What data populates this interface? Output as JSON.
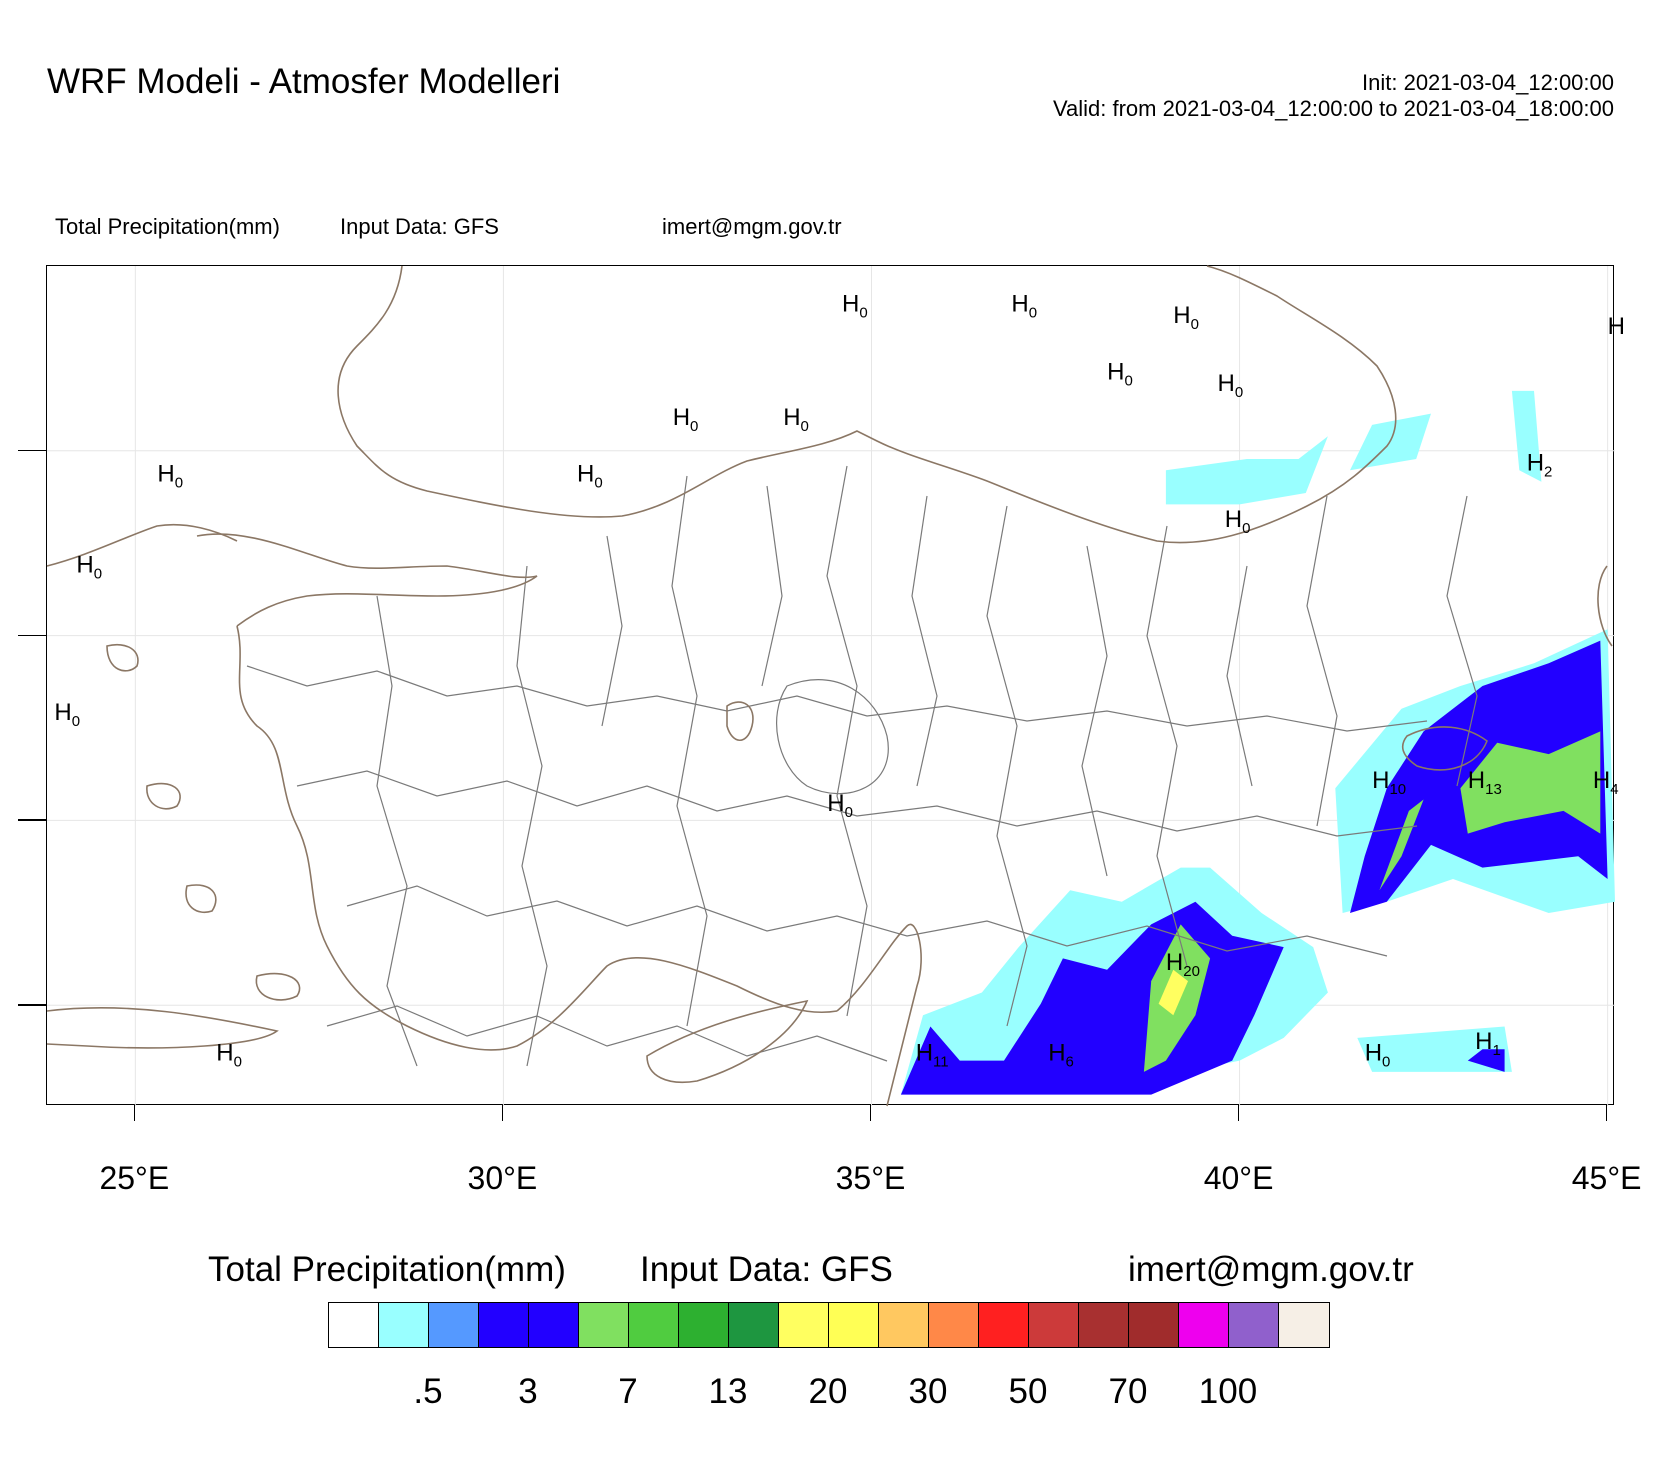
{
  "header": {
    "title": "WRF Modeli - Atmosfer Modelleri",
    "init": "Init: 2021-03-04_12:00:00",
    "valid": "Valid: from 2021-03-04_12:00:00 to 2021-03-04_18:00:00"
  },
  "subheader": {
    "field": "Total Precipitation(mm)",
    "input": "Input Data: GFS",
    "email": "imert@mgm.gov.tr"
  },
  "map": {
    "lon_range": [
      23.8,
      45.1
    ],
    "lat_range": [
      35.2,
      42.6
    ],
    "lon_ticks": [
      "25°E",
      "30°E",
      "35°E",
      "40°E",
      "45°E"
    ],
    "lon_tick_values": [
      25,
      30,
      35,
      40,
      45
    ],
    "colors": {
      "coast": "#8b7765",
      "province": "#7a7a7a",
      "frame": "#000000"
    },
    "h_labels": [
      {
        "num": "0",
        "lon": 34.6,
        "lat": 42.2
      },
      {
        "num": "0",
        "lon": 36.9,
        "lat": 42.2
      },
      {
        "num": "0",
        "lon": 39.1,
        "lat": 42.1
      },
      {
        "num": "0",
        "lon": 38.2,
        "lat": 41.6
      },
      {
        "num": "0",
        "lon": 39.7,
        "lat": 41.5
      },
      {
        "num": "0",
        "lon": 32.3,
        "lat": 41.2
      },
      {
        "num": "0",
        "lon": 33.8,
        "lat": 41.2
      },
      {
        "num": "0",
        "lon": 31.0,
        "lat": 40.7
      },
      {
        "num": "0",
        "lon": 25.3,
        "lat": 40.7
      },
      {
        "num": "0",
        "lon": 24.2,
        "lat": 39.9
      },
      {
        "num": "0",
        "lon": 23.9,
        "lat": 38.6
      },
      {
        "num": "2",
        "lon": 43.9,
        "lat": 40.8
      },
      {
        "num": "0",
        "lon": 39.8,
        "lat": 40.3
      },
      {
        "num": "0",
        "lon": 34.4,
        "lat": 37.8
      },
      {
        "num": "10",
        "lon": 41.8,
        "lat": 38.0
      },
      {
        "num": "13",
        "lon": 43.1,
        "lat": 38.0
      },
      {
        "num": "4",
        "lon": 44.8,
        "lat": 38.0
      },
      {
        "num": "20",
        "lon": 39.0,
        "lat": 36.4
      },
      {
        "num": "0",
        "lon": 41.7,
        "lat": 35.6
      },
      {
        "num": "1",
        "lon": 43.2,
        "lat": 35.7
      },
      {
        "num": "0",
        "lon": 26.1,
        "lat": 35.6
      },
      {
        "num": "11",
        "lon": 35.6,
        "lat": 35.6
      },
      {
        "num": "6",
        "lon": 37.4,
        "lat": 35.6
      },
      {
        "num": "",
        "lon": 45.0,
        "lat": 42.0
      }
    ],
    "precip_areas": [
      {
        "level": 0,
        "points": [
          [
            41.8,
            41.2
          ],
          [
            42.6,
            41.3
          ],
          [
            42.4,
            40.9
          ],
          [
            41.5,
            40.8
          ]
        ]
      },
      {
        "level": 0,
        "points": [
          [
            39.0,
            40.8
          ],
          [
            40.1,
            40.9
          ],
          [
            40.8,
            40.9
          ],
          [
            41.2,
            41.1
          ],
          [
            40.9,
            40.6
          ],
          [
            40.0,
            40.5
          ],
          [
            39.0,
            40.5
          ]
        ]
      },
      {
        "level": 0,
        "points": [
          [
            43.7,
            41.5
          ],
          [
            44.0,
            41.5
          ],
          [
            44.1,
            40.7
          ],
          [
            43.8,
            40.8
          ]
        ]
      },
      {
        "level": 0,
        "points": [
          [
            41.3,
            38.0
          ],
          [
            42.2,
            38.7
          ],
          [
            43.0,
            38.9
          ],
          [
            44.0,
            39.1
          ],
          [
            45.0,
            39.4
          ],
          [
            45.1,
            37.0
          ],
          [
            44.2,
            36.9
          ],
          [
            42.9,
            37.2
          ],
          [
            42.0,
            37.0
          ],
          [
            41.4,
            36.9
          ]
        ]
      },
      {
        "level": 0,
        "points": [
          [
            35.4,
            35.3
          ],
          [
            35.7,
            36.0
          ],
          [
            36.5,
            36.2
          ],
          [
            37.0,
            36.6
          ],
          [
            37.7,
            37.1
          ],
          [
            38.4,
            37.0
          ],
          [
            39.2,
            37.3
          ],
          [
            39.6,
            37.3
          ],
          [
            40.3,
            36.9
          ],
          [
            41.0,
            36.6
          ],
          [
            41.2,
            36.2
          ],
          [
            40.6,
            35.8
          ],
          [
            40.0,
            35.6
          ],
          [
            38.5,
            35.4
          ]
        ]
      },
      {
        "level": 0,
        "points": [
          [
            41.6,
            35.8
          ],
          [
            43.6,
            35.9
          ],
          [
            43.7,
            35.5
          ],
          [
            41.8,
            35.5
          ]
        ]
      },
      {
        "level": 2,
        "points": [
          [
            41.7,
            37.4
          ],
          [
            42.0,
            38.0
          ],
          [
            42.5,
            38.5
          ],
          [
            43.3,
            38.9
          ],
          [
            44.2,
            39.1
          ],
          [
            44.9,
            39.3
          ],
          [
            45.0,
            37.2
          ],
          [
            44.6,
            37.4
          ],
          [
            43.3,
            37.3
          ],
          [
            42.6,
            37.5
          ],
          [
            42.0,
            37.0
          ],
          [
            41.5,
            36.9
          ]
        ]
      },
      {
        "level": 2,
        "points": [
          [
            35.4,
            35.3
          ],
          [
            35.8,
            35.9
          ],
          [
            36.2,
            35.6
          ],
          [
            36.8,
            35.6
          ],
          [
            37.3,
            36.1
          ],
          [
            37.6,
            36.5
          ],
          [
            38.2,
            36.4
          ],
          [
            38.8,
            36.8
          ],
          [
            39.4,
            37.0
          ],
          [
            39.9,
            36.7
          ],
          [
            40.6,
            36.6
          ],
          [
            40.2,
            36.0
          ],
          [
            39.9,
            35.6
          ],
          [
            38.8,
            35.3
          ]
        ]
      },
      {
        "level": 3,
        "points": [
          [
            43.6,
            35.7
          ],
          [
            43.3,
            35.7
          ],
          [
            43.1,
            35.6
          ],
          [
            43.6,
            35.5
          ]
        ]
      },
      {
        "level": 4,
        "points": [
          [
            41.9,
            37.1
          ],
          [
            42.3,
            37.8
          ],
          [
            42.5,
            37.9
          ],
          [
            42.2,
            37.4
          ]
        ]
      },
      {
        "level": 4,
        "points": [
          [
            43.0,
            38.0
          ],
          [
            43.5,
            38.4
          ],
          [
            44.2,
            38.3
          ],
          [
            44.9,
            38.5
          ],
          [
            44.9,
            37.6
          ],
          [
            44.4,
            37.8
          ],
          [
            43.6,
            37.7
          ],
          [
            43.1,
            37.6
          ]
        ]
      },
      {
        "level": 4,
        "points": [
          [
            38.7,
            35.5
          ],
          [
            38.8,
            36.3
          ],
          [
            39.2,
            36.8
          ],
          [
            39.6,
            36.5
          ],
          [
            39.4,
            36.0
          ],
          [
            39.0,
            35.6
          ]
        ]
      },
      {
        "level": 8,
        "points": [
          [
            38.9,
            36.1
          ],
          [
            39.1,
            36.4
          ],
          [
            39.3,
            36.3
          ],
          [
            39.1,
            36.0
          ]
        ]
      }
    ]
  },
  "bottom": {
    "field": "Total Precipitation(mm)",
    "input": "Input Data: GFS",
    "email": "imert@mgm.gov.tr"
  },
  "colorbar": {
    "colors": [
      "#ffffff",
      "#99ffff",
      "#5599ff",
      "#2200ff",
      "#2200ff",
      "#80e060",
      "#50cc40",
      "#2db030",
      "#1e9640",
      "#ffff60",
      "#ffff55",
      "#ffc860",
      "#ff8848",
      "#ff2020",
      "#cc3a3a",
      "#a83030",
      "#a02c2c",
      "#ee00ee",
      "#9060cc",
      "#f6efe6"
    ],
    "labels": [
      ".5",
      "3",
      "7",
      "13",
      "20",
      "30",
      "50",
      "70",
      "100"
    ],
    "label_boundaries": [
      2,
      4,
      6,
      8,
      10,
      12,
      14,
      16,
      18
    ]
  }
}
